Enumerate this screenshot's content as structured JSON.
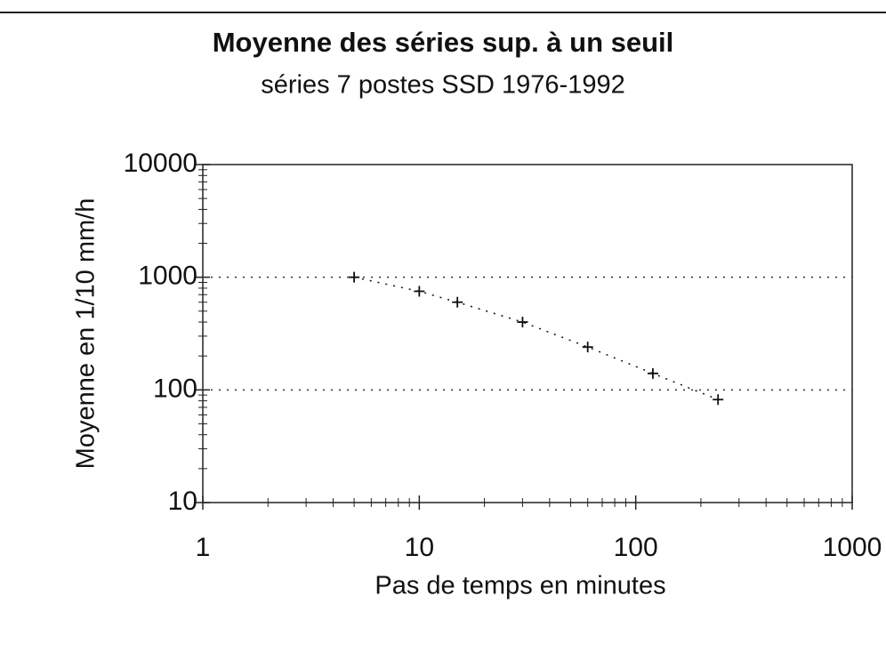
{
  "chart_data": {
    "type": "scatter",
    "title": "Moyenne des séries sup. à un seuil",
    "subtitle": "séries 7 postes SSD 1976-1992",
    "x_label": "Pas de temps en minutes",
    "y_label": "Moyenne en 1/10 mm/h",
    "x": [
      5,
      10,
      15,
      30,
      60,
      120,
      240
    ],
    "series": [
      {
        "values": [
          1000,
          750,
          600,
          400,
          240,
          140,
          82
        ],
        "color": "#111"
      }
    ],
    "xlim": [
      1,
      1000
    ],
    "ylim": [
      10,
      10000
    ],
    "xticks": [
      1,
      10,
      100,
      1000
    ],
    "yticks": [
      10,
      100,
      1000,
      10000
    ],
    "xscale": "log",
    "yscale": "log",
    "grid": true
  }
}
